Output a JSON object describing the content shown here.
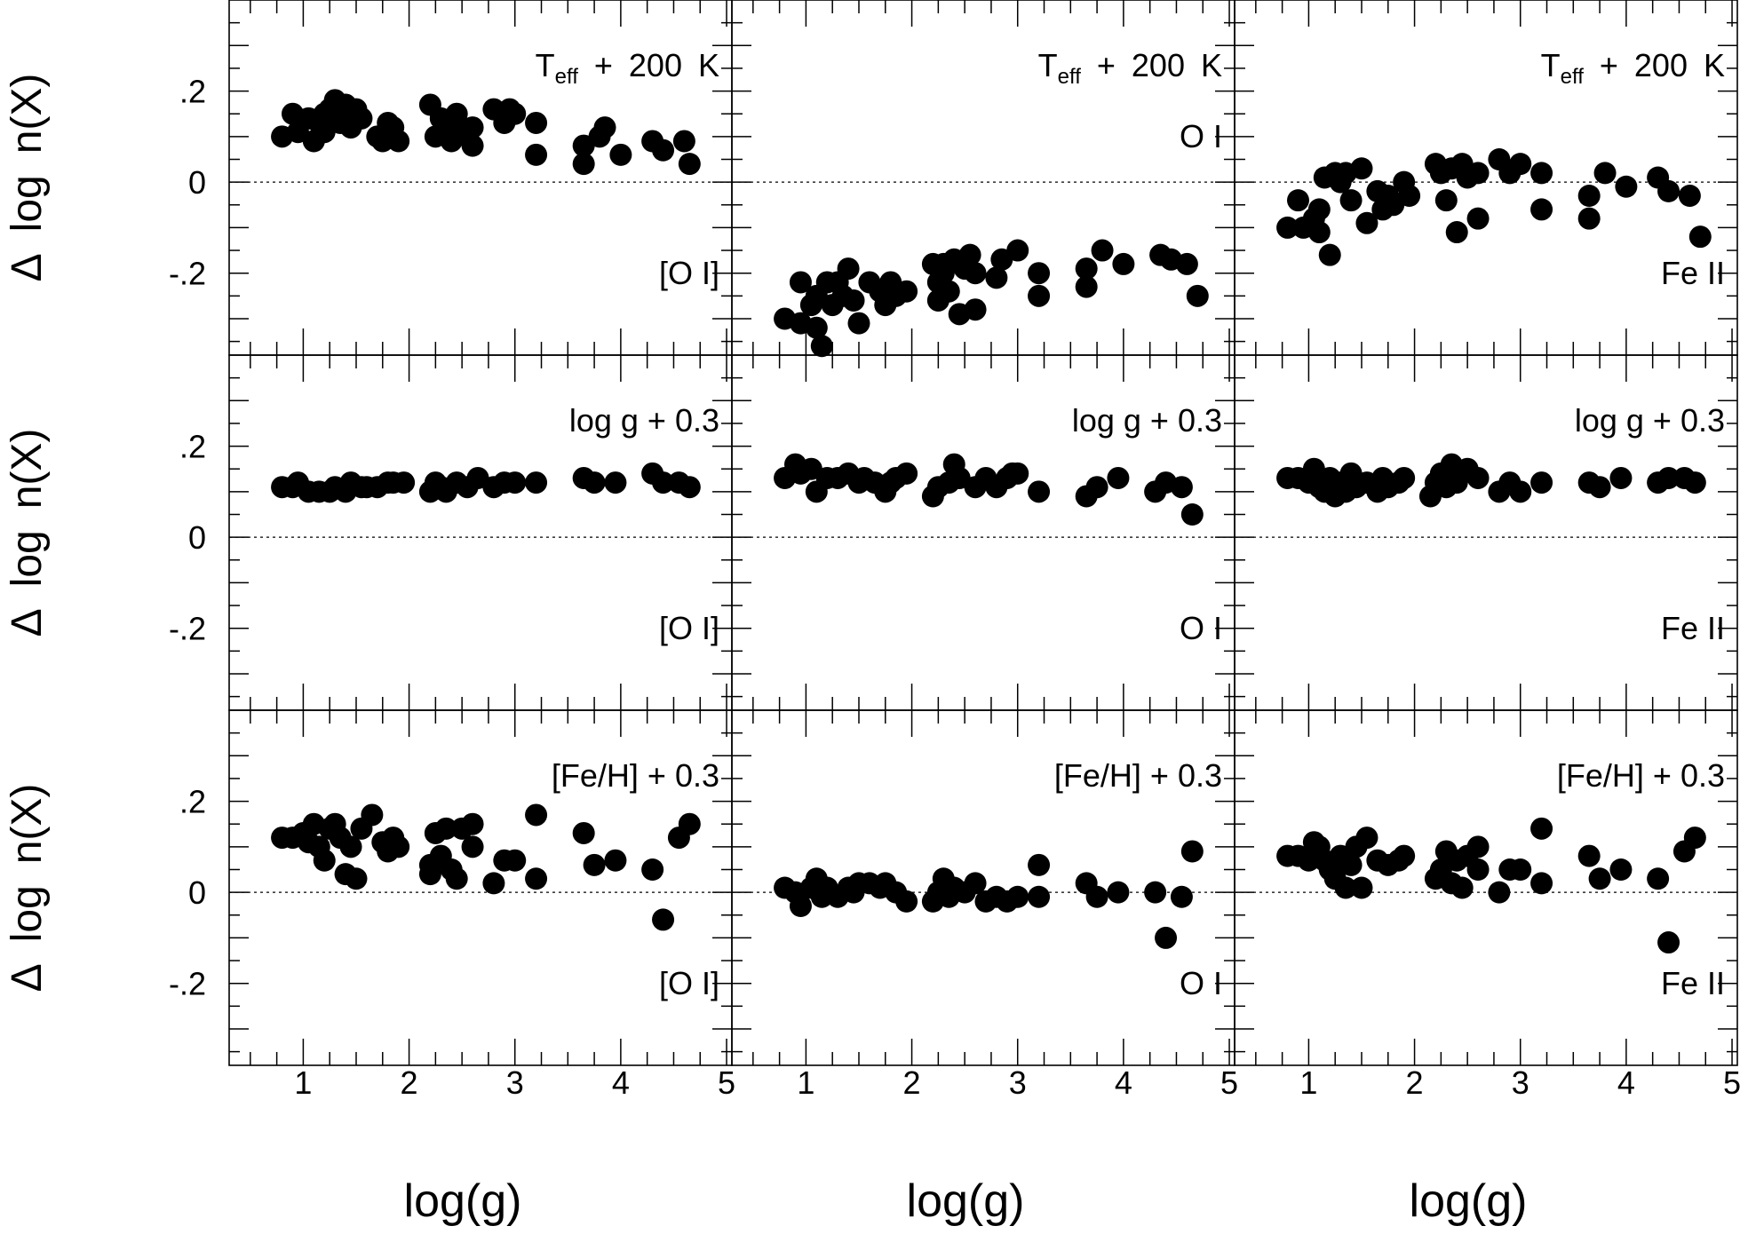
{
  "figure": {
    "ylabel": "Δ log n(X)",
    "xlabel": "log(g)",
    "xticks": [
      "1",
      "2",
      "3",
      "4",
      "5"
    ],
    "yticks": [
      ".2",
      "0",
      "-.2"
    ]
  },
  "chart_data": [
    {
      "type": "scatter",
      "row": 0,
      "col": 0,
      "perturbation": "T_eff + 200 K",
      "species": "[O I]",
      "xlim": [
        0.3,
        5.05
      ],
      "ylim": [
        -0.38,
        0.4
      ],
      "x": [
        0.8,
        0.9,
        0.95,
        1.05,
        1.1,
        1.15,
        1.2,
        1.2,
        1.25,
        1.3,
        1.35,
        1.4,
        1.45,
        1.5,
        1.55,
        1.7,
        1.75,
        1.8,
        1.85,
        1.9,
        2.2,
        2.25,
        2.3,
        2.35,
        2.4,
        2.45,
        2.5,
        2.6,
        2.6,
        2.8,
        2.9,
        2.95,
        3.0,
        3.2,
        3.2,
        3.65,
        3.65,
        3.8,
        3.85,
        4.0,
        4.3,
        4.4,
        4.6,
        4.65
      ],
      "y": [
        0.1,
        0.15,
        0.11,
        0.14,
        0.09,
        0.13,
        0.11,
        0.15,
        0.16,
        0.18,
        0.13,
        0.17,
        0.12,
        0.16,
        0.14,
        0.1,
        0.09,
        0.13,
        0.12,
        0.09,
        0.17,
        0.1,
        0.14,
        0.12,
        0.09,
        0.15,
        0.11,
        0.08,
        0.12,
        0.16,
        0.13,
        0.16,
        0.15,
        0.13,
        0.06,
        0.08,
        0.04,
        0.1,
        0.12,
        0.06,
        0.09,
        0.07,
        0.09,
        0.04
      ]
    },
    {
      "type": "scatter",
      "row": 0,
      "col": 1,
      "perturbation": "T_eff + 200 K",
      "species": "O I",
      "xlim": [
        0.3,
        5.05
      ],
      "ylim": [
        -0.38,
        0.4
      ],
      "x": [
        0.8,
        0.95,
        0.95,
        1.05,
        1.1,
        1.1,
        1.15,
        1.2,
        1.25,
        1.3,
        1.35,
        1.4,
        1.45,
        1.5,
        1.6,
        1.7,
        1.75,
        1.8,
        1.85,
        1.95,
        2.2,
        2.25,
        2.25,
        2.3,
        2.3,
        2.35,
        2.4,
        2.45,
        2.5,
        2.55,
        2.6,
        2.6,
        2.8,
        2.85,
        3.0,
        3.2,
        3.2,
        3.65,
        3.65,
        3.8,
        4.0,
        4.35,
        4.45,
        4.6,
        4.7
      ],
      "y": [
        -0.3,
        -0.22,
        -0.31,
        -0.27,
        -0.25,
        -0.32,
        -0.36,
        -0.22,
        -0.27,
        -0.22,
        -0.25,
        -0.19,
        -0.26,
        -0.31,
        -0.22,
        -0.24,
        -0.27,
        -0.22,
        -0.25,
        -0.24,
        -0.18,
        -0.22,
        -0.26,
        -0.2,
        -0.18,
        -0.24,
        -0.17,
        -0.29,
        -0.19,
        -0.16,
        -0.2,
        -0.28,
        -0.21,
        -0.17,
        -0.15,
        -0.2,
        -0.25,
        -0.19,
        -0.23,
        -0.15,
        -0.18,
        -0.16,
        -0.17,
        -0.18,
        -0.25
      ]
    },
    {
      "type": "scatter",
      "row": 0,
      "col": 2,
      "perturbation": "T_eff + 200 K",
      "species": "Fe II",
      "xlim": [
        0.3,
        5.05
      ],
      "ylim": [
        -0.38,
        0.4
      ],
      "x": [
        0.8,
        0.9,
        0.95,
        1.05,
        1.1,
        1.1,
        1.15,
        1.2,
        1.25,
        1.3,
        1.35,
        1.4,
        1.5,
        1.55,
        1.65,
        1.7,
        1.75,
        1.8,
        1.9,
        1.95,
        2.2,
        2.25,
        2.3,
        2.35,
        2.4,
        2.45,
        2.5,
        2.6,
        2.6,
        2.8,
        2.9,
        3.0,
        3.2,
        3.2,
        3.65,
        3.65,
        3.8,
        4.0,
        4.3,
        4.4,
        4.6,
        4.7
      ],
      "y": [
        -0.1,
        -0.04,
        -0.1,
        -0.08,
        -0.06,
        -0.11,
        0.01,
        -0.16,
        0.02,
        0.0,
        0.02,
        -0.04,
        0.03,
        -0.09,
        -0.02,
        -0.06,
        -0.03,
        -0.05,
        0.0,
        -0.03,
        0.04,
        0.02,
        -0.04,
        0.03,
        -0.11,
        0.04,
        0.01,
        -0.08,
        0.02,
        0.05,
        0.02,
        0.04,
        -0.06,
        0.02,
        -0.03,
        -0.08,
        0.02,
        -0.01,
        0.01,
        -0.02,
        -0.03,
        -0.12
      ]
    },
    {
      "type": "scatter",
      "row": 1,
      "col": 0,
      "perturbation": "log g + 0.3",
      "species": "[O I]",
      "xlim": [
        0.3,
        5.05
      ],
      "ylim": [
        -0.38,
        0.4
      ],
      "x": [
        0.8,
        0.9,
        0.95,
        1.05,
        1.15,
        1.25,
        1.3,
        1.4,
        1.45,
        1.55,
        1.6,
        1.7,
        1.8,
        1.85,
        1.95,
        2.2,
        2.25,
        2.3,
        2.35,
        2.45,
        2.55,
        2.65,
        2.8,
        2.9,
        3.0,
        3.2,
        3.65,
        3.75,
        3.95,
        4.3,
        4.4,
        4.55,
        4.65
      ],
      "y": [
        0.11,
        0.11,
        0.12,
        0.1,
        0.1,
        0.1,
        0.11,
        0.1,
        0.12,
        0.11,
        0.11,
        0.11,
        0.12,
        0.12,
        0.12,
        0.1,
        0.12,
        0.11,
        0.1,
        0.12,
        0.11,
        0.13,
        0.11,
        0.12,
        0.12,
        0.12,
        0.13,
        0.12,
        0.12,
        0.14,
        0.12,
        0.12,
        0.11
      ]
    },
    {
      "type": "scatter",
      "row": 1,
      "col": 1,
      "perturbation": "log g + 0.3",
      "species": "O I",
      "xlim": [
        0.3,
        5.05
      ],
      "ylim": [
        -0.38,
        0.4
      ],
      "x": [
        0.8,
        0.9,
        0.95,
        1.05,
        1.1,
        1.2,
        1.3,
        1.4,
        1.5,
        1.55,
        1.65,
        1.75,
        1.8,
        1.85,
        1.95,
        2.2,
        2.25,
        2.35,
        2.4,
        2.45,
        2.6,
        2.7,
        2.8,
        2.9,
        2.95,
        3.0,
        3.2,
        3.65,
        3.75,
        3.95,
        4.3,
        4.4,
        4.55,
        4.65
      ],
      "y": [
        0.13,
        0.16,
        0.14,
        0.15,
        0.1,
        0.13,
        0.13,
        0.14,
        0.12,
        0.13,
        0.12,
        0.1,
        0.12,
        0.13,
        0.14,
        0.09,
        0.11,
        0.12,
        0.16,
        0.13,
        0.11,
        0.13,
        0.11,
        0.13,
        0.14,
        0.14,
        0.1,
        0.09,
        0.11,
        0.13,
        0.1,
        0.12,
        0.11,
        0.05
      ]
    },
    {
      "type": "scatter",
      "row": 1,
      "col": 2,
      "perturbation": "log g + 0.3",
      "species": "Fe II",
      "xlim": [
        0.3,
        5.05
      ],
      "ylim": [
        -0.38,
        0.4
      ],
      "x": [
        0.8,
        0.9,
        1.0,
        1.05,
        1.1,
        1.15,
        1.2,
        1.25,
        1.3,
        1.35,
        1.4,
        1.45,
        1.55,
        1.65,
        1.7,
        1.75,
        1.85,
        1.9,
        2.15,
        2.2,
        2.25,
        2.3,
        2.35,
        2.4,
        2.5,
        2.6,
        2.8,
        2.9,
        3.0,
        3.2,
        3.65,
        3.75,
        3.95,
        4.3,
        4.4,
        4.55,
        4.65
      ],
      "y": [
        0.13,
        0.13,
        0.12,
        0.15,
        0.11,
        0.1,
        0.13,
        0.09,
        0.12,
        0.1,
        0.14,
        0.11,
        0.12,
        0.1,
        0.13,
        0.11,
        0.12,
        0.13,
        0.09,
        0.12,
        0.14,
        0.11,
        0.16,
        0.12,
        0.15,
        0.13,
        0.1,
        0.12,
        0.1,
        0.12,
        0.12,
        0.11,
        0.13,
        0.12,
        0.13,
        0.13,
        0.12
      ]
    },
    {
      "type": "scatter",
      "row": 2,
      "col": 0,
      "perturbation": "[Fe/H] + 0.3",
      "species": "[O I]",
      "xlim": [
        0.3,
        5.05
      ],
      "ylim": [
        -0.38,
        0.4
      ],
      "x": [
        0.8,
        0.9,
        1.0,
        1.05,
        1.1,
        1.15,
        1.2,
        1.25,
        1.3,
        1.35,
        1.4,
        1.45,
        1.5,
        1.55,
        1.65,
        1.75,
        1.8,
        1.85,
        1.9,
        2.2,
        2.2,
        2.25,
        2.3,
        2.35,
        2.4,
        2.45,
        2.5,
        2.6,
        2.6,
        2.8,
        2.9,
        3.0,
        3.2,
        3.2,
        3.65,
        3.75,
        3.95,
        4.3,
        4.4,
        4.55,
        4.65
      ],
      "y": [
        0.12,
        0.12,
        0.13,
        0.11,
        0.15,
        0.1,
        0.07,
        0.14,
        0.15,
        0.12,
        0.04,
        0.1,
        0.03,
        0.14,
        0.17,
        0.11,
        0.09,
        0.12,
        0.1,
        0.06,
        0.04,
        0.13,
        0.08,
        0.14,
        0.05,
        0.03,
        0.14,
        0.1,
        0.15,
        0.02,
        0.07,
        0.07,
        0.17,
        0.03,
        0.13,
        0.06,
        0.07,
        0.05,
        -0.06,
        0.12,
        0.15
      ]
    },
    {
      "type": "scatter",
      "row": 2,
      "col": 1,
      "perturbation": "[Fe/H] + 0.3",
      "species": "O I",
      "xlim": [
        0.3,
        5.05
      ],
      "ylim": [
        -0.38,
        0.4
      ],
      "x": [
        0.8,
        0.9,
        0.95,
        1.05,
        1.1,
        1.15,
        1.2,
        1.3,
        1.4,
        1.45,
        1.5,
        1.6,
        1.7,
        1.75,
        1.85,
        1.95,
        2.2,
        2.25,
        2.3,
        2.35,
        2.4,
        2.5,
        2.6,
        2.7,
        2.8,
        2.9,
        3.0,
        3.2,
        3.2,
        3.65,
        3.75,
        3.95,
        4.3,
        4.4,
        4.55,
        4.65
      ],
      "y": [
        0.01,
        0.0,
        -0.03,
        0.01,
        0.03,
        -0.01,
        0.01,
        -0.01,
        0.01,
        0.0,
        0.02,
        0.02,
        0.01,
        0.02,
        0.0,
        -0.02,
        -0.02,
        0.0,
        0.03,
        -0.01,
        0.01,
        0.0,
        0.02,
        -0.02,
        -0.01,
        -0.02,
        -0.01,
        0.06,
        -0.01,
        0.02,
        -0.01,
        0.0,
        0.0,
        -0.1,
        -0.01,
        0.09
      ]
    },
    {
      "type": "scatter",
      "row": 2,
      "col": 2,
      "perturbation": "[Fe/H] + 0.3",
      "species": "Fe II",
      "xlim": [
        0.3,
        5.05
      ],
      "ylim": [
        -0.38,
        0.4
      ],
      "x": [
        0.8,
        0.9,
        1.0,
        1.05,
        1.1,
        1.15,
        1.2,
        1.25,
        1.3,
        1.35,
        1.4,
        1.45,
        1.5,
        1.55,
        1.65,
        1.75,
        1.85,
        1.9,
        2.2,
        2.25,
        2.3,
        2.35,
        2.4,
        2.45,
        2.5,
        2.6,
        2.6,
        2.8,
        2.9,
        3.0,
        3.2,
        3.2,
        3.65,
        3.75,
        3.95,
        4.3,
        4.4,
        4.55,
        4.65
      ],
      "y": [
        0.08,
        0.08,
        0.07,
        0.11,
        0.1,
        0.07,
        0.05,
        0.03,
        0.08,
        0.01,
        0.06,
        0.1,
        0.01,
        0.12,
        0.07,
        0.06,
        0.07,
        0.08,
        0.03,
        0.05,
        0.09,
        0.02,
        0.07,
        0.01,
        0.08,
        0.05,
        0.1,
        0.0,
        0.05,
        0.05,
        0.14,
        0.02,
        0.08,
        0.03,
        0.05,
        0.03,
        -0.11,
        0.09,
        0.12
      ]
    }
  ]
}
